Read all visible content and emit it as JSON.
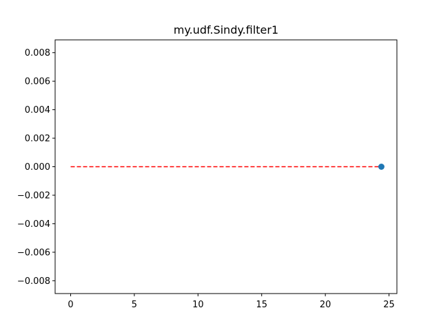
{
  "chart_data": {
    "type": "line",
    "title": "my.udf.Sindy.filter1",
    "xlabel": "",
    "ylabel": "",
    "xlim": [
      -1.22,
      25.62
    ],
    "ylim": [
      -0.0089,
      0.0089
    ],
    "x_ticks": [
      0,
      5,
      10,
      15,
      20,
      25
    ],
    "x_tick_labels": [
      "0",
      "5",
      "10",
      "15",
      "20",
      "25"
    ],
    "y_ticks": [
      0.008,
      0.006,
      0.004,
      0.002,
      0.0,
      -0.002,
      -0.004,
      -0.006,
      -0.008
    ],
    "y_tick_labels": [
      "0.008",
      "0.006",
      "0.004",
      "0.002",
      "0.000",
      "−0.002",
      "−0.004",
      "−0.006",
      "−0.008"
    ],
    "grid": false,
    "series": [
      {
        "kind": "dashed-line",
        "color": "#ff0000",
        "x": [
          0,
          24.4
        ],
        "y": [
          0.0,
          0.0
        ]
      },
      {
        "kind": "scatter",
        "color": "#1f77b4",
        "x": [
          24.4
        ],
        "y": [
          0.0
        ]
      }
    ]
  }
}
